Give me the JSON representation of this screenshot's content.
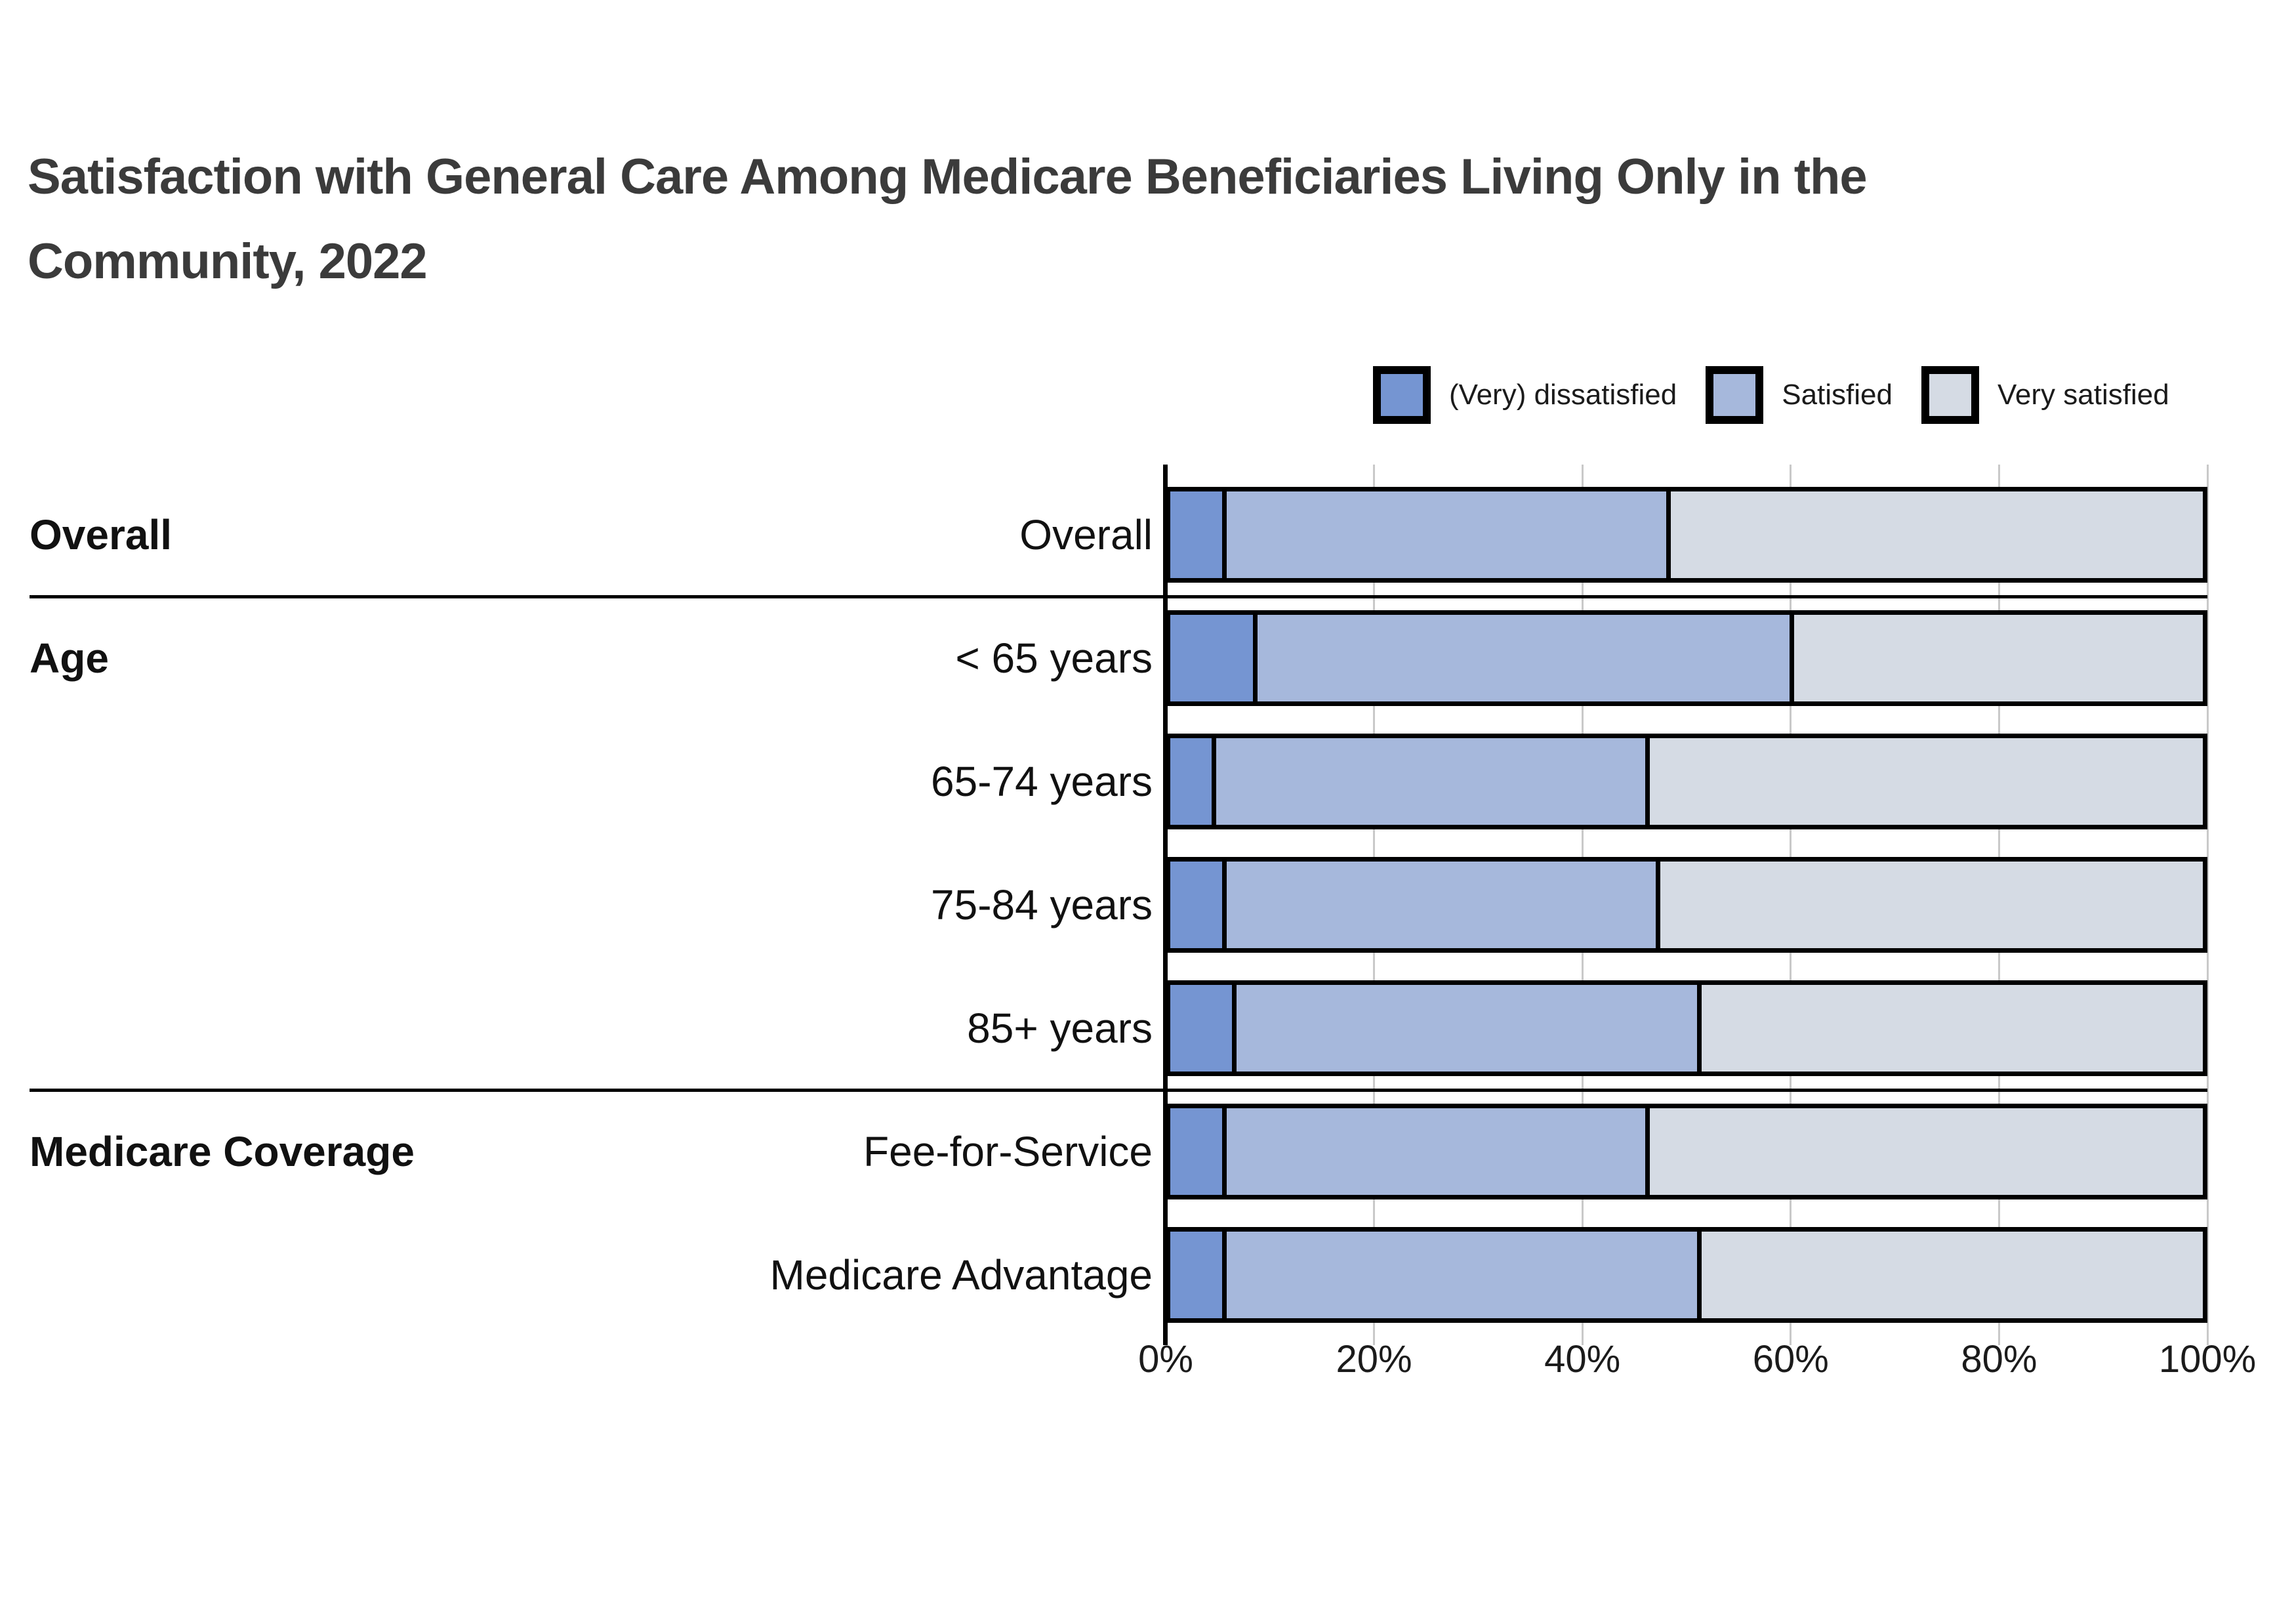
{
  "title": "Satisfaction with General Care Among Medicare Beneficiaries Living Only in the\nCommunity, 2022",
  "legend": [
    {
      "label": "(Very) dissatisfied",
      "color": "#7595D2"
    },
    {
      "label": "Satisfied",
      "color": "#A6B8DC"
    },
    {
      "label": "Very satisfied",
      "color": "#D5DBE4"
    }
  ],
  "chart_data": {
    "type": "bar",
    "orientation": "horizontal-stacked",
    "title": "Satisfaction with General Care Among Medicare Beneficiaries Living Only in the Community, 2022",
    "unit": "percent",
    "xlim": [
      0,
      100
    ],
    "x_ticks": [
      "0%",
      "20%",
      "40%",
      "60%",
      "80%",
      "100%"
    ],
    "x_tick_values": [
      0,
      20,
      40,
      60,
      80,
      100
    ],
    "grid": true,
    "legend_position": "top-right",
    "categories": [
      "Overall",
      "< 65 years",
      "65-74 years",
      "75-84 years",
      "85+ years",
      "Fee-for-Service",
      "Medicare Advantage"
    ],
    "series": [
      {
        "name": "(Very) dissatisfied",
        "color": "#7595D2",
        "values": [
          5,
          8,
          4,
          5,
          6,
          5,
          5
        ]
      },
      {
        "name": "Satisfied",
        "color": "#A6B8DC",
        "values": [
          43,
          52,
          42,
          42,
          45,
          41,
          46
        ]
      },
      {
        "name": "Very satisfied",
        "color": "#D5DBE4",
        "values": [
          52,
          40,
          54,
          53,
          49,
          54,
          49
        ]
      }
    ],
    "rows": [
      {
        "group": "Overall",
        "label": "Overall",
        "values": [
          5,
          43,
          52
        ],
        "section_start": false
      },
      {
        "group": "Age",
        "label": "< 65 years",
        "values": [
          8,
          52,
          40
        ],
        "section_start": true
      },
      {
        "group": "",
        "label": "65-74 years",
        "values": [
          4,
          42,
          54
        ],
        "section_start": false
      },
      {
        "group": "",
        "label": "75-84 years",
        "values": [
          5,
          42,
          53
        ],
        "section_start": false
      },
      {
        "group": "",
        "label": "85+ years",
        "values": [
          6,
          45,
          49
        ],
        "section_start": false
      },
      {
        "group": "Medicare Coverage",
        "label": "Fee-for-Service",
        "values": [
          5,
          41,
          54
        ],
        "section_start": true
      },
      {
        "group": "",
        "label": "Medicare Advantage",
        "values": [
          5,
          46,
          49
        ],
        "section_start": false
      }
    ]
  }
}
